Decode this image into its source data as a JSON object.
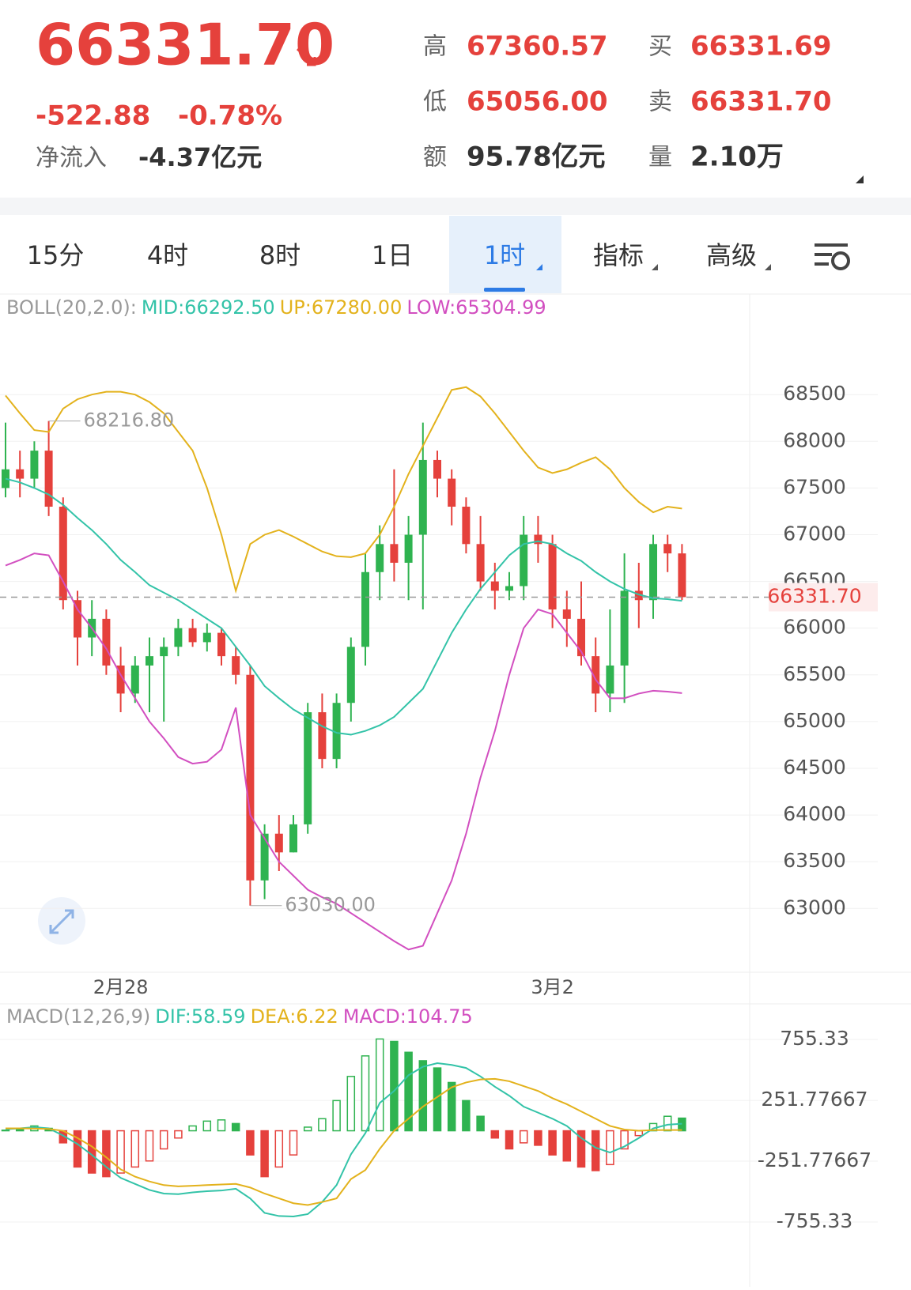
{
  "header": {
    "price": "66331.70",
    "change": "-522.88",
    "change_pct": "-0.78%",
    "net_inflow_label": "净流入",
    "net_inflow": "-4.37亿元",
    "stats": [
      {
        "label": "高",
        "value": "67360.57"
      },
      {
        "label": "低",
        "value": "65056.00"
      },
      {
        "label": "额",
        "value": "95.78亿元"
      },
      {
        "label": "买",
        "value": "66331.69"
      },
      {
        "label": "卖",
        "value": "66331.70"
      },
      {
        "label": "量",
        "value": "2.10万"
      }
    ]
  },
  "tabs": [
    "15分",
    "4时",
    "8时",
    "1日",
    "1时",
    "指标",
    "高级"
  ],
  "chart_data": [
    {
      "type": "candlestick",
      "indicator": "BOLL(20,2.0):",
      "up_color": "#2fb350",
      "down_color": "#e5413c",
      "ylim": [
        62300,
        69500
      ],
      "yticks": [
        63000,
        63500,
        64000,
        64500,
        65000,
        65500,
        66000,
        66500,
        67000,
        67500,
        68000,
        68500
      ],
      "high_label": "68216.80",
      "low_label": "63030.00",
      "last_label": "66331.70",
      "categories": [
        null,
        null,
        null,
        null,
        null,
        null,
        null,
        null,
        "2月28",
        null,
        null,
        null,
        null,
        null,
        null,
        null,
        null,
        null,
        null,
        null,
        null,
        null,
        null,
        null,
        null,
        null,
        null,
        null,
        null,
        null,
        null,
        null,
        null,
        null,
        null,
        null,
        null,
        null,
        "3月2",
        null,
        null,
        null,
        null,
        null,
        null,
        null,
        null,
        null
      ],
      "open": [
        67500,
        67700,
        67600,
        67900,
        67300,
        66300,
        65900,
        66100,
        65600,
        65300,
        65600,
        65700,
        65800,
        66000,
        65850,
        65950,
        65700,
        65500,
        63300,
        63800,
        63600,
        63900,
        65100,
        64600,
        65200,
        65800,
        66600,
        66900,
        66700,
        67000,
        67800,
        67600,
        67300,
        66900,
        66500,
        66400,
        66450,
        67000,
        66900,
        66200,
        66100,
        65700,
        65300,
        65600,
        66400,
        66300,
        66900,
        66800
      ],
      "high": [
        68200,
        67900,
        68000,
        68216.8,
        67400,
        66400,
        66300,
        66200,
        65800,
        65700,
        65900,
        65900,
        66100,
        66100,
        66050,
        66000,
        65800,
        65600,
        63900,
        64000,
        64000,
        65200,
        65300,
        65300,
        65900,
        66800,
        67100,
        67700,
        67200,
        68200,
        67900,
        67700,
        67400,
        67200,
        66700,
        66600,
        67200,
        67200,
        67000,
        66400,
        66500,
        65900,
        66200,
        66800,
        66700,
        67000,
        67000,
        66900
      ],
      "low": [
        67400,
        67400,
        67500,
        67200,
        66200,
        65600,
        65700,
        65500,
        65100,
        65200,
        65100,
        65000,
        65700,
        65800,
        65750,
        65600,
        65400,
        63030,
        63100,
        63400,
        63600,
        63800,
        64500,
        64500,
        65000,
        65600,
        66300,
        66500,
        66300,
        66200,
        67400,
        67100,
        66800,
        66400,
        66200,
        66300,
        66300,
        66700,
        66000,
        65800,
        65600,
        65100,
        65100,
        65200,
        66000,
        66100,
        66600,
        66300
      ],
      "close": [
        67700,
        67600,
        67900,
        67300,
        66300,
        65900,
        66100,
        65600,
        65300,
        65600,
        65700,
        65800,
        66000,
        65850,
        65950,
        65700,
        65500,
        63300,
        63800,
        63600,
        63900,
        65100,
        64600,
        65200,
        65800,
        66600,
        66900,
        66700,
        67000,
        67800,
        67600,
        67300,
        66900,
        66500,
        66400,
        66450,
        67000,
        66900,
        66200,
        66100,
        65700,
        65300,
        65600,
        66400,
        66300,
        66900,
        66800,
        66331.7
      ],
      "series": [
        {
          "name": "MID:66292.50",
          "color": "#33c3a8",
          "values": [
            67600,
            67560,
            67500,
            67430,
            67320,
            67180,
            67050,
            66900,
            66730,
            66600,
            66460,
            66380,
            66300,
            66200,
            66100,
            66000,
            65800,
            65600,
            65380,
            65250,
            65130,
            65040,
            64950,
            64880,
            64860,
            64900,
            64960,
            65050,
            65200,
            65350,
            65650,
            65950,
            66200,
            66420,
            66600,
            66780,
            66900,
            66930,
            66900,
            66800,
            66720,
            66600,
            66500,
            66420,
            66360,
            66320,
            66310,
            66292.5
          ]
        },
        {
          "name": "UP:67280.00",
          "color": "#e3b21c",
          "values": [
            68490,
            68300,
            68120,
            68100,
            68350,
            68450,
            68500,
            68530,
            68530,
            68500,
            68420,
            68300,
            68100,
            67900,
            67500,
            67000,
            66400,
            66900,
            67000,
            67050,
            66980,
            66900,
            66820,
            66770,
            66760,
            66800,
            67000,
            67300,
            67650,
            67950,
            68250,
            68550,
            68580,
            68480,
            68300,
            68100,
            67900,
            67720,
            67660,
            67700,
            67770,
            67830,
            67700,
            67500,
            67350,
            67240,
            67300,
            67280
          ]
        },
        {
          "name": "LOW:65304.99",
          "color": "#d24fc0",
          "values": [
            66670,
            66730,
            66800,
            66780,
            66500,
            66200,
            66000,
            65780,
            65500,
            65250,
            65000,
            64820,
            64620,
            64550,
            64570,
            64700,
            65150,
            64000,
            63750,
            63500,
            63350,
            63200,
            63120,
            63050,
            62950,
            62850,
            62750,
            62650,
            62560,
            62600,
            62950,
            63300,
            63800,
            64400,
            64900,
            65500,
            66000,
            66200,
            66150,
            65950,
            65750,
            65450,
            65250,
            65250,
            65300,
            65330,
            65320,
            65304.99
          ]
        }
      ]
    },
    {
      "type": "macd",
      "indicator": "MACD(12,26,9)",
      "up_color": "#2fb350",
      "down_color": "#e5413c",
      "ylim": [
        -880,
        920
      ],
      "yticks": [
        755.33,
        251.77667,
        -251.77667,
        -755.33
      ],
      "series": [
        {
          "name": "DIF:58.59",
          "color": "#33c3a8",
          "type": "line",
          "values": [
            13,
            20,
            30,
            20,
            -40,
            -110,
            -200,
            -300,
            -390,
            -440,
            -490,
            -520,
            -525,
            -510,
            -500,
            -495,
            -480,
            -560,
            -680,
            -706,
            -710,
            -690,
            -590,
            -450,
            -195,
            -20,
            230,
            330,
            460,
            530,
            560,
            545,
            520,
            450,
            365,
            290,
            200,
            150,
            100,
            40,
            -60,
            -140,
            -180,
            -130,
            -60,
            20,
            50,
            58.59
          ]
        },
        {
          "name": "DEA:6.22",
          "color": "#e3b21c",
          "type": "line",
          "values": [
            20,
            20,
            18,
            15,
            0,
            -60,
            -130,
            -220,
            -320,
            -380,
            -420,
            -450,
            -460,
            -455,
            -450,
            -445,
            -440,
            -470,
            -520,
            -560,
            -600,
            -615,
            -590,
            -560,
            -400,
            -325,
            -150,
            0,
            100,
            200,
            280,
            360,
            400,
            425,
            430,
            410,
            370,
            330,
            270,
            220,
            160,
            100,
            40,
            10,
            0,
            5,
            6,
            6.22
          ]
        },
        {
          "name": "MACD:104.75",
          "color": "#d24fc0",
          "type": "bar",
          "values": [
            5,
            10,
            40,
            20,
            -100,
            -300,
            -350,
            -380,
            -350,
            -300,
            -250,
            -150,
            -60,
            40,
            80,
            90,
            60,
            -200,
            -380,
            -300,
            -200,
            30,
            100,
            250,
            450,
            620,
            760,
            740,
            650,
            580,
            520,
            400,
            250,
            120,
            -60,
            -150,
            -100,
            -120,
            -200,
            -250,
            -300,
            -330,
            -280,
            -150,
            -40,
            60,
            120,
            104.75
          ]
        }
      ]
    }
  ]
}
